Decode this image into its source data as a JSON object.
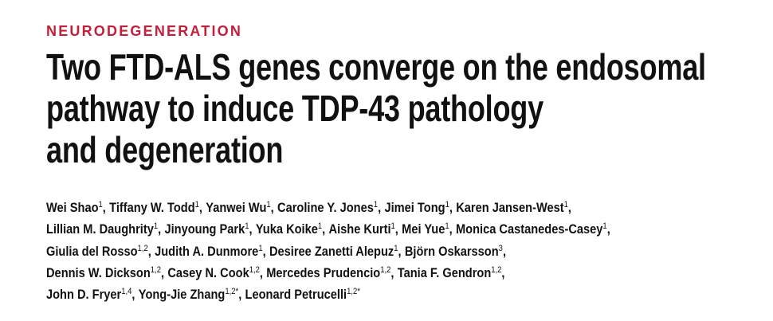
{
  "section": "NEURODEGENERATION",
  "title_lines": [
    "Two FTD-ALS genes converge on the endosomal",
    "pathway to induce TDP-43 pathology",
    "and degeneration"
  ],
  "authors": {
    "lines": [
      [
        {
          "name": "Wei Shao",
          "sup": "1",
          "sep": ","
        },
        {
          "name": "Tiffany W. Todd",
          "sup": "1",
          "sep": ","
        },
        {
          "name": "Yanwei Wu",
          "sup": "1",
          "sep": ","
        },
        {
          "name": "Caroline Y. Jones",
          "sup": "1",
          "sep": ","
        },
        {
          "name": "Jimei Tong",
          "sup": "1",
          "sep": ","
        },
        {
          "name": "Karen Jansen-West",
          "sup": "1",
          "sep": ","
        }
      ],
      [
        {
          "name": "Lillian M. Daughrity",
          "sup": "1",
          "sep": ","
        },
        {
          "name": "Jinyoung Park",
          "sup": "1",
          "sep": ","
        },
        {
          "name": "Yuka Koike",
          "sup": "1",
          "sep": ","
        },
        {
          "name": "Aishe Kurti",
          "sup": "1",
          "sep": ","
        },
        {
          "name": "Mei Yue",
          "sup": "1",
          "sep": ","
        },
        {
          "name": "Monica Castanedes-Casey",
          "sup": "1",
          "sep": ","
        }
      ],
      [
        {
          "name": "Giulia del Rosso",
          "sup": "1,2",
          "sep": ","
        },
        {
          "name": "Judith A. Dunmore",
          "sup": "1",
          "sep": ","
        },
        {
          "name": "Desiree Zanetti Alepuz",
          "sup": "1",
          "sep": ","
        },
        {
          "name": "Björn Oskarsson",
          "sup": "3",
          "sep": ","
        }
      ],
      [
        {
          "name": "Dennis W. Dickson",
          "sup": "1,2",
          "sep": ","
        },
        {
          "name": "Casey N. Cook",
          "sup": "1,2",
          "sep": ","
        },
        {
          "name": "Mercedes Prudencio",
          "sup": "1,2",
          "sep": ","
        },
        {
          "name": "Tania F. Gendron",
          "sup": "1,2",
          "sep": ","
        }
      ],
      [
        {
          "name": "John D. Fryer",
          "sup": "1,4",
          "sep": ","
        },
        {
          "name": "Yong-Jie Zhang",
          "sup": "1,2*",
          "sep": ","
        },
        {
          "name": "Leonard Petrucelli",
          "sup": "1,2*"
        }
      ]
    ]
  }
}
